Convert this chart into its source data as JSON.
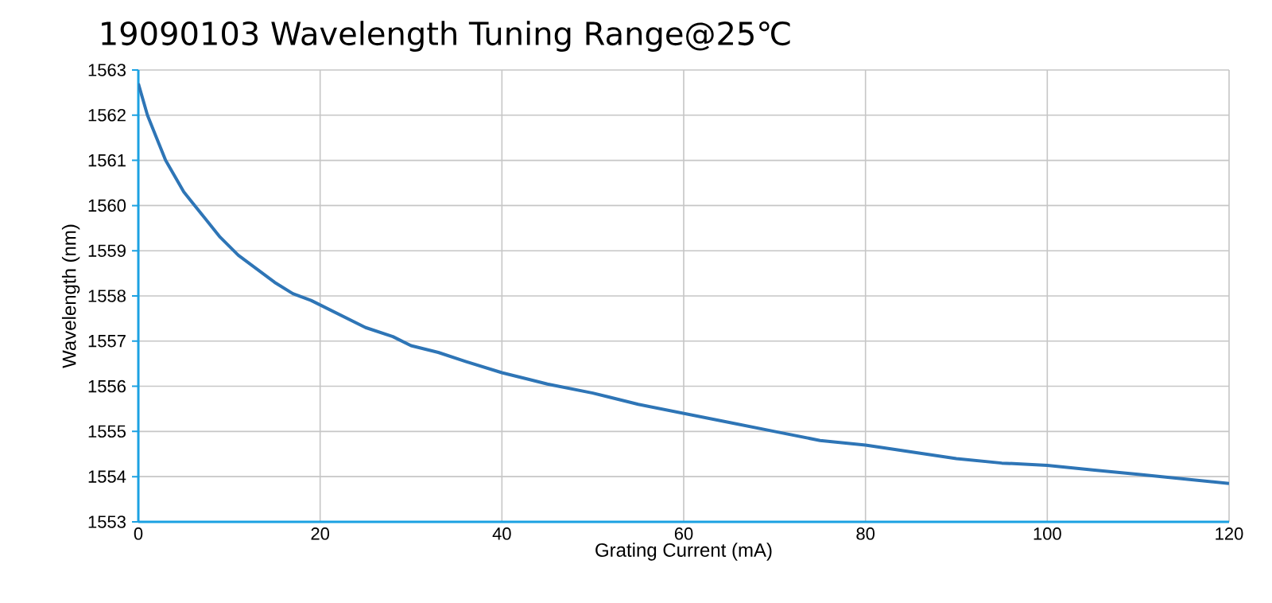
{
  "chart_data": {
    "type": "line",
    "title": "19090103 Wavelength Tuning Range@25℃",
    "xlabel": "Grating Current (mA)",
    "ylabel": "Wavelength (nm)",
    "x": [
      0,
      1,
      2,
      3,
      5,
      7,
      9,
      11,
      13,
      15,
      17,
      19,
      22,
      25,
      28,
      30,
      33,
      36,
      40,
      43,
      45,
      50,
      55,
      60,
      65,
      70,
      75,
      80,
      85,
      90,
      95,
      100,
      105,
      110,
      115,
      120
    ],
    "series": [
      {
        "color": "#2e75b6",
        "values": [
          1562.7,
          1562.0,
          1561.5,
          1561.0,
          1560.3,
          1559.8,
          1559.3,
          1558.9,
          1558.6,
          1558.3,
          1558.05,
          1557.9,
          1557.6,
          1557.3,
          1557.1,
          1556.9,
          1556.75,
          1556.55,
          1556.3,
          1556.15,
          1556.05,
          1555.85,
          1555.6,
          1555.4,
          1555.2,
          1555.0,
          1554.8,
          1554.7,
          1554.55,
          1554.4,
          1554.3,
          1554.25,
          1554.15,
          1554.05,
          1553.95,
          1553.85
        ]
      }
    ],
    "xlim": [
      0,
      120
    ],
    "ylim": [
      1553,
      1563
    ],
    "xticks": [
      0,
      20,
      40,
      60,
      80,
      100,
      120
    ],
    "yticks": [
      1553,
      1554,
      1555,
      1556,
      1557,
      1558,
      1559,
      1560,
      1561,
      1562,
      1563
    ],
    "grid": true,
    "marker": "none",
    "line_style": "solid"
  }
}
